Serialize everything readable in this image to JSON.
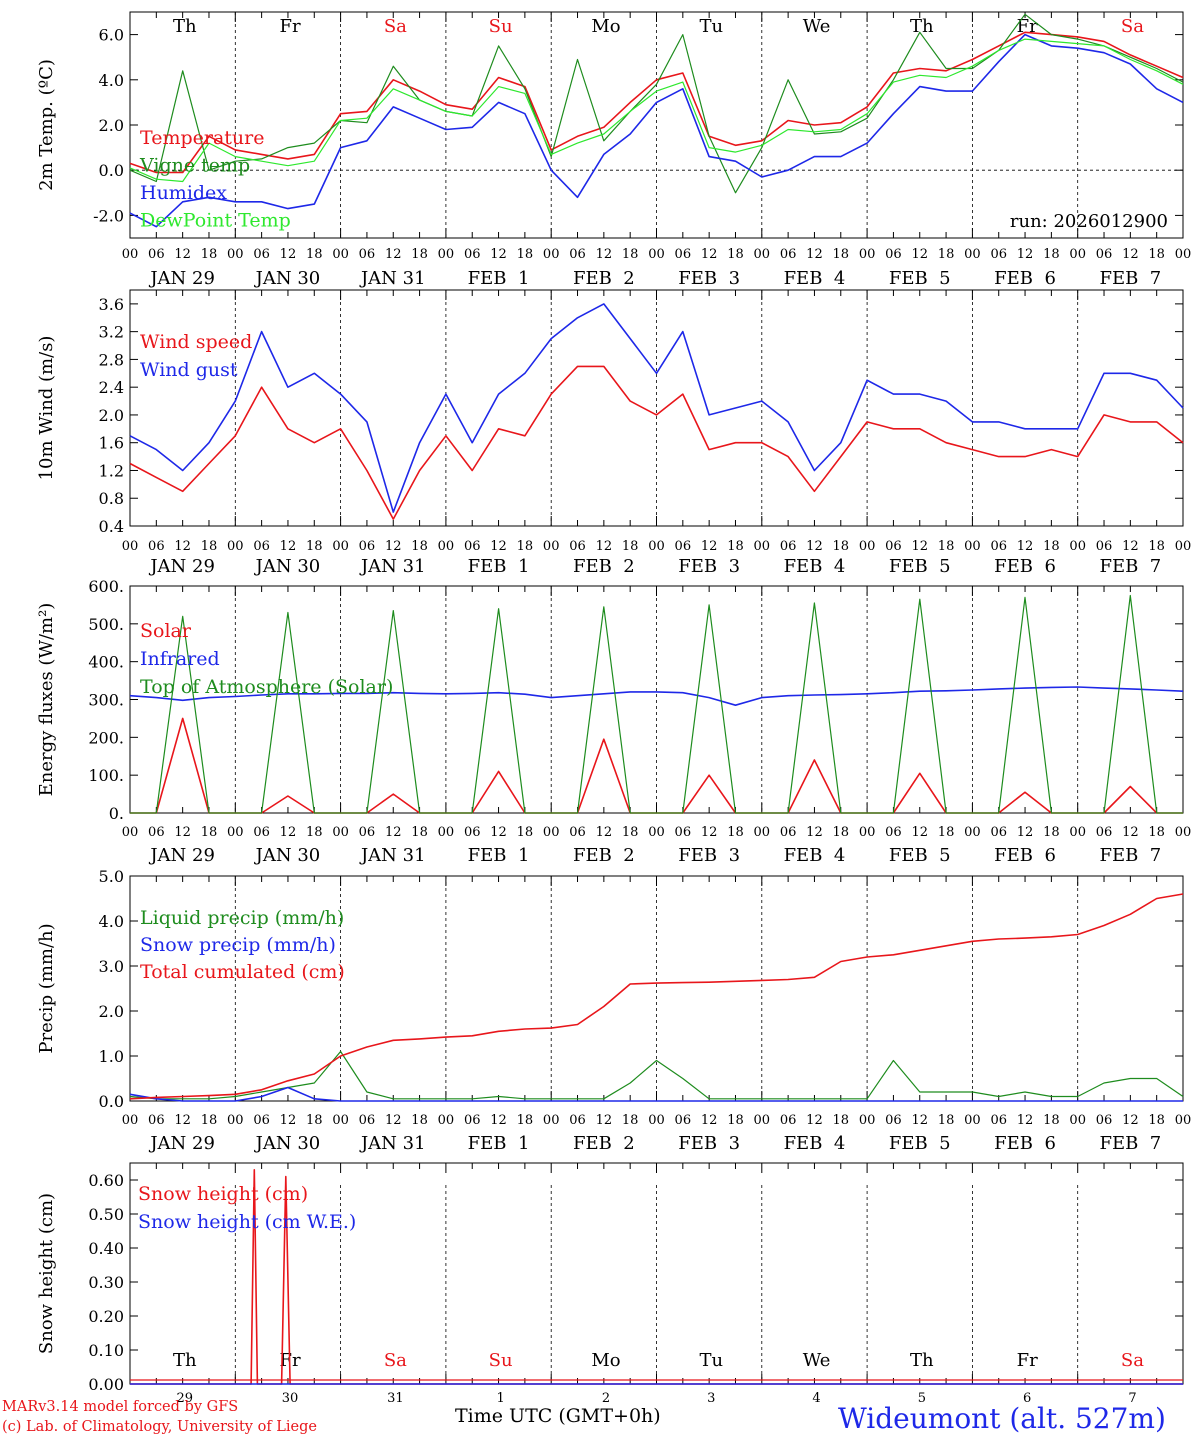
{
  "colors": {
    "red": "#e8161b",
    "green": "#1e8c1e",
    "blue": "#1e28e8",
    "lightgreen": "#2ee82e",
    "sat_sun": "#e8161b"
  },
  "x_axis": {
    "hour_labels": [
      "00",
      "06",
      "12",
      "18"
    ],
    "final_hour_label": "00",
    "date_labels": [
      "JAN 29",
      "JAN 30",
      "JAN 31",
      "FEB  1",
      "FEB  2",
      "FEB  3",
      "FEB  4",
      "FEB  5",
      "FEB  6",
      "FEB  7"
    ],
    "days_of_week": [
      "Th",
      "Fr",
      "Sa",
      "Su",
      "Mo",
      "Tu",
      "We",
      "Th",
      "Fr",
      "Sa"
    ],
    "day_numbers": [
      "29",
      "30",
      "31",
      "1",
      "2",
      "3",
      "4",
      "5",
      "6",
      "7"
    ],
    "title": "Time UTC (GMT+0h)"
  },
  "run_label": "run: 2026012900",
  "footer": {
    "model": "MARv3.14 model forced by GFS",
    "credit": "(c) Lab. of Climatology, University of Liege",
    "station": "Wideumont (alt. 527m)"
  },
  "chart_data": [
    {
      "type": "line",
      "ylabel": "2m Temp. (ºC)",
      "ylim": [
        -3.0,
        7.0
      ],
      "yticks": [
        "-2.0",
        "0.0",
        "2.0",
        "4.0",
        "6.0"
      ],
      "zero_line": true,
      "x_days": [
        0,
        0.25,
        0.5,
        0.75,
        1,
        1.25,
        1.5,
        1.75,
        2,
        2.25,
        2.5,
        2.75,
        3,
        3.25,
        3.5,
        3.75,
        4,
        4.25,
        4.5,
        4.75,
        5,
        5.25,
        5.5,
        5.75,
        6,
        6.25,
        6.5,
        6.75,
        7,
        7.25,
        7.5,
        7.75,
        8,
        8.25,
        8.5,
        8.75,
        9,
        9.25,
        9.5,
        9.75,
        10
      ],
      "series": [
        {
          "name": "Temperature",
          "color": "red",
          "values": [
            0.3,
            -0.1,
            -0.1,
            1.5,
            0.9,
            0.7,
            0.5,
            0.7,
            2.5,
            2.6,
            4.0,
            3.5,
            2.9,
            2.7,
            4.1,
            3.7,
            0.9,
            1.5,
            1.9,
            3.0,
            4.0,
            4.3,
            1.5,
            1.1,
            1.3,
            2.2,
            2.0,
            2.1,
            2.8,
            4.3,
            4.5,
            4.4,
            4.9,
            5.5,
            6.1,
            6.0,
            5.9,
            5.7,
            5.1,
            4.6,
            4.1
          ]
        },
        {
          "name": "Vigne temp",
          "color": "green",
          "values": [
            0.0,
            -0.5,
            4.4,
            0.0,
            0.4,
            0.5,
            1.0,
            1.2,
            2.2,
            2.1,
            4.6,
            3.1,
            2.6,
            2.4,
            5.5,
            3.6,
            0.6,
            4.9,
            1.3,
            2.6,
            3.8,
            6.0,
            1.5,
            -1.0,
            1.0,
            4.0,
            1.6,
            1.7,
            2.3,
            4.0,
            6.1,
            4.5,
            4.5,
            5.3,
            6.9,
            6.0,
            5.8,
            5.5,
            5.0,
            4.5,
            3.9
          ]
        },
        {
          "name": "Humidex",
          "color": "blue",
          "values": [
            -1.9,
            -2.5,
            -1.4,
            -1.2,
            -1.4,
            -1.4,
            -1.7,
            -1.5,
            1.0,
            1.3,
            2.8,
            2.3,
            1.8,
            1.9,
            3.0,
            2.5,
            0.0,
            -1.2,
            0.7,
            1.6,
            3.0,
            3.6,
            0.6,
            0.4,
            -0.3,
            0.0,
            0.6,
            0.6,
            1.2,
            2.5,
            3.7,
            3.5,
            3.5,
            4.8,
            6.0,
            5.5,
            5.4,
            5.2,
            4.7,
            3.6,
            3.0
          ]
        },
        {
          "name": "DewPoint Temp",
          "color": "lightgreen",
          "values": [
            0.1,
            -0.4,
            -0.5,
            1.2,
            0.6,
            0.4,
            0.2,
            0.4,
            2.2,
            2.3,
            3.6,
            3.1,
            2.6,
            2.4,
            3.7,
            3.4,
            0.7,
            1.2,
            1.6,
            2.6,
            3.5,
            3.9,
            1.0,
            0.8,
            1.1,
            1.8,
            1.7,
            1.8,
            2.5,
            3.9,
            4.2,
            4.1,
            4.6,
            5.3,
            5.8,
            5.7,
            5.6,
            5.5,
            4.9,
            4.4,
            3.8
          ]
        }
      ]
    },
    {
      "type": "line",
      "ylabel": "10m Wind (m/s)",
      "ylim": [
        0.4,
        3.8
      ],
      "yticks": [
        "0.4",
        "0.8",
        "1.2",
        "1.6",
        "2.0",
        "2.4",
        "2.8",
        "3.2",
        "3.6"
      ],
      "x_days": [
        0,
        0.25,
        0.5,
        0.75,
        1,
        1.25,
        1.5,
        1.75,
        2,
        2.25,
        2.5,
        2.75,
        3,
        3.25,
        3.5,
        3.75,
        4,
        4.25,
        4.5,
        4.75,
        5,
        5.25,
        5.5,
        5.75,
        6,
        6.25,
        6.5,
        6.75,
        7,
        7.25,
        7.5,
        7.75,
        8,
        8.25,
        8.5,
        8.75,
        9,
        9.25,
        9.5,
        9.75,
        10
      ],
      "series": [
        {
          "name": "Wind speed",
          "color": "red",
          "values": [
            1.3,
            1.1,
            0.9,
            1.3,
            1.7,
            2.4,
            1.8,
            1.6,
            1.8,
            1.2,
            0.5,
            1.2,
            1.7,
            1.2,
            1.8,
            1.7,
            2.3,
            2.7,
            2.7,
            2.2,
            2.0,
            2.3,
            1.5,
            1.6,
            1.6,
            1.4,
            0.9,
            1.4,
            1.9,
            1.8,
            1.8,
            1.6,
            1.5,
            1.4,
            1.4,
            1.5,
            1.4,
            2.0,
            1.9,
            1.9,
            1.6
          ]
        },
        {
          "name": "Wind gust",
          "color": "blue",
          "values": [
            1.7,
            1.5,
            1.2,
            1.6,
            2.2,
            3.2,
            2.4,
            2.6,
            2.3,
            1.9,
            0.6,
            1.6,
            2.3,
            1.6,
            2.3,
            2.6,
            3.1,
            3.4,
            3.6,
            3.1,
            2.6,
            3.2,
            2.0,
            2.1,
            2.2,
            1.9,
            1.2,
            1.6,
            2.5,
            2.3,
            2.3,
            2.2,
            1.9,
            1.9,
            1.8,
            1.8,
            1.8,
            2.6,
            2.6,
            2.5,
            2.1
          ]
        }
      ]
    },
    {
      "type": "line",
      "ylabel": "Energy fluxes (W/m²)",
      "ylim": [
        0,
        600
      ],
      "yticks": [
        "0.",
        "100.",
        "200.",
        "300.",
        "400.",
        "500.",
        "600."
      ],
      "x_days": [
        0,
        0.25,
        0.5,
        0.75,
        1,
        1.25,
        1.5,
        1.75,
        2,
        2.25,
        2.5,
        2.75,
        3,
        3.25,
        3.5,
        3.75,
        4,
        4.25,
        4.5,
        4.75,
        5,
        5.25,
        5.5,
        5.75,
        6,
        6.25,
        6.5,
        6.75,
        7,
        7.25,
        7.5,
        7.75,
        8,
        8.25,
        8.5,
        8.75,
        9,
        9.25,
        9.5,
        9.75,
        10
      ],
      "series": [
        {
          "name": "Solar",
          "color": "red",
          "values": [
            0,
            0,
            250,
            0,
            0,
            0,
            45,
            0,
            0,
            0,
            50,
            0,
            0,
            0,
            110,
            0,
            0,
            0,
            195,
            0,
            0,
            0,
            100,
            0,
            0,
            0,
            140,
            0,
            0,
            0,
            105,
            0,
            0,
            0,
            55,
            0,
            0,
            0,
            70,
            0,
            0
          ]
        },
        {
          "name": "Infrared",
          "color": "blue",
          "values": [
            310,
            305,
            298,
            305,
            308,
            312,
            315,
            315,
            316,
            316,
            318,
            316,
            315,
            316,
            318,
            314,
            305,
            310,
            315,
            320,
            320,
            318,
            305,
            285,
            305,
            310,
            312,
            313,
            315,
            318,
            322,
            323,
            325,
            328,
            330,
            332,
            333,
            330,
            328,
            325,
            322
          ]
        },
        {
          "name": "Top of Atmosphere (Solar)",
          "color": "green",
          "values": [
            0,
            0,
            520,
            0,
            0,
            0,
            530,
            0,
            0,
            0,
            535,
            0,
            0,
            0,
            540,
            0,
            0,
            0,
            545,
            0,
            0,
            0,
            550,
            0,
            0,
            0,
            555,
            0,
            0,
            0,
            565,
            0,
            0,
            0,
            570,
            0,
            0,
            0,
            575,
            0,
            0
          ]
        }
      ]
    },
    {
      "type": "line",
      "ylabel": "Precip (mm/h)",
      "ylim": [
        0.0,
        5.0
      ],
      "yticks": [
        "0.0",
        "1.0",
        "2.0",
        "3.0",
        "4.0",
        "5.0"
      ],
      "x_days": [
        0,
        0.25,
        0.5,
        0.75,
        1,
        1.25,
        1.5,
        1.75,
        2,
        2.25,
        2.5,
        2.75,
        3,
        3.25,
        3.5,
        3.75,
        4,
        4.25,
        4.5,
        4.75,
        5,
        5.25,
        5.5,
        5.75,
        6,
        6.25,
        6.5,
        6.75,
        7,
        7.25,
        7.5,
        7.75,
        8,
        8.25,
        8.5,
        8.75,
        9,
        9.25,
        9.5,
        9.75,
        10
      ],
      "series": [
        {
          "name": "Liquid precip (mm/h)",
          "color": "green",
          "values": [
            0.1,
            0.05,
            0.05,
            0.05,
            0.1,
            0.2,
            0.3,
            0.4,
            1.1,
            0.2,
            0.05,
            0.05,
            0.05,
            0.05,
            0.1,
            0.05,
            0.05,
            0.05,
            0.05,
            0.4,
            0.9,
            0.5,
            0.05,
            0.05,
            0.05,
            0.05,
            0.05,
            0.05,
            0.05,
            0.9,
            0.2,
            0.2,
            0.2,
            0.1,
            0.2,
            0.1,
            0.1,
            0.4,
            0.5,
            0.5,
            0.1
          ]
        },
        {
          "name": "Snow precip (mm/h)",
          "color": "blue",
          "values": [
            0.15,
            0.05,
            0.0,
            0.0,
            0.0,
            0.1,
            0.3,
            0.05,
            0.0,
            0.0,
            0.0,
            0.0,
            0.0,
            0.0,
            0.0,
            0.0,
            0.0,
            0.0,
            0.0,
            0.0,
            0.0,
            0.0,
            0.0,
            0.0,
            0.0,
            0.0,
            0.0,
            0.0,
            0.0,
            0.0,
            0.0,
            0.0,
            0.0,
            0.0,
            0.0,
            0.0,
            0.0,
            0.0,
            0.0,
            0.0,
            0.0
          ]
        },
        {
          "name": "Total cumulated (cm)",
          "color": "red",
          "values": [
            0.05,
            0.08,
            0.1,
            0.12,
            0.15,
            0.25,
            0.45,
            0.6,
            1.0,
            1.2,
            1.35,
            1.38,
            1.42,
            1.45,
            1.55,
            1.6,
            1.62,
            1.7,
            2.1,
            2.6,
            2.62,
            2.63,
            2.64,
            2.66,
            2.68,
            2.7,
            2.75,
            3.1,
            3.2,
            3.25,
            3.35,
            3.45,
            3.55,
            3.6,
            3.62,
            3.65,
            3.7,
            3.9,
            4.15,
            4.5,
            4.6
          ]
        }
      ]
    },
    {
      "type": "line",
      "ylabel": "Snow height (cm)",
      "ylim": [
        0.0,
        0.65
      ],
      "yticks": [
        "0.00",
        "0.10",
        "0.20",
        "0.30",
        "0.40",
        "0.50",
        "0.60"
      ],
      "x_days": [
        0,
        1.15,
        1.18,
        1.21,
        1.44,
        1.48,
        1.52,
        10
      ],
      "series": [
        {
          "name": "Snow height (cm)",
          "color": "red",
          "values": [
            0,
            0,
            0.63,
            0,
            0,
            0.61,
            0,
            0
          ]
        },
        {
          "name": "Snow height (cm W.E.)",
          "color": "blue",
          "values": [
            0,
            0,
            0,
            0,
            0,
            0,
            0,
            0
          ]
        }
      ]
    }
  ]
}
